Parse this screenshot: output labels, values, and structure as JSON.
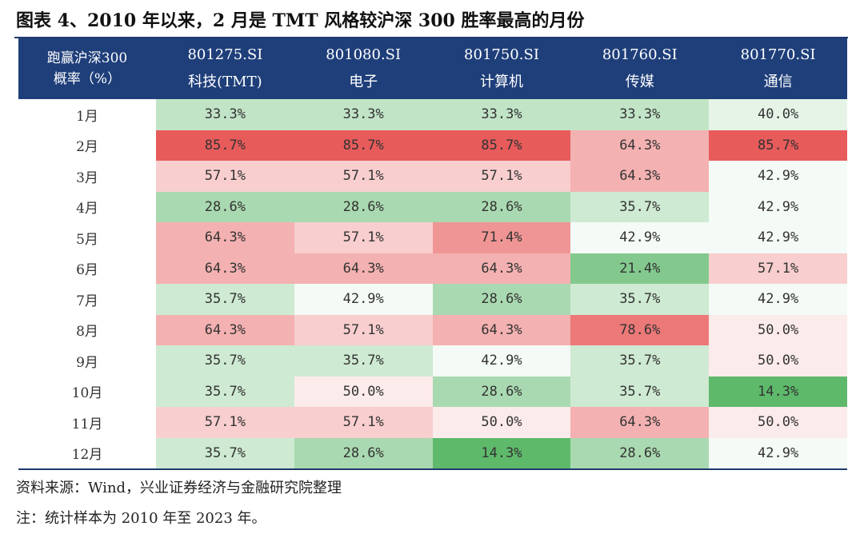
{
  "title": "图表 4、2010 年以来，2 月是 TMT 风格较沪深 300 胜率最高的月份",
  "corner_header": [
    "跑赢沪深300",
    "概率（%）"
  ],
  "source": "资料来源：Wind，兴业证券经济与金融研究院整理",
  "note": "注：统计样本为 2010 年至 2023 年。",
  "colors": {
    "header_bg": "#1f3f7a",
    "high": "#e85a5a",
    "low": "#5cb86a",
    "mid": "#ffffff"
  },
  "chart_data": {
    "type": "table",
    "columns": [
      {
        "code": "801275.SI",
        "name": "科技(TMT)"
      },
      {
        "code": "801080.SI",
        "name": "电子"
      },
      {
        "code": "801750.SI",
        "name": "计算机"
      },
      {
        "code": "801760.SI",
        "name": "传媒"
      },
      {
        "code": "801770.SI",
        "name": "通信"
      }
    ],
    "rows": [
      {
        "month": "1月",
        "values": [
          "33.3%",
          "33.3%",
          "33.3%",
          "33.3%",
          "40.0%"
        ]
      },
      {
        "month": "2月",
        "values": [
          "85.7%",
          "85.7%",
          "85.7%",
          "64.3%",
          "85.7%"
        ]
      },
      {
        "month": "3月",
        "values": [
          "57.1%",
          "57.1%",
          "57.1%",
          "64.3%",
          "42.9%"
        ]
      },
      {
        "month": "4月",
        "values": [
          "28.6%",
          "28.6%",
          "28.6%",
          "35.7%",
          "42.9%"
        ]
      },
      {
        "month": "5月",
        "values": [
          "64.3%",
          "57.1%",
          "71.4%",
          "42.9%",
          "42.9%"
        ]
      },
      {
        "month": "6月",
        "values": [
          "64.3%",
          "64.3%",
          "64.3%",
          "21.4%",
          "57.1%"
        ]
      },
      {
        "month": "7月",
        "values": [
          "35.7%",
          "42.9%",
          "28.6%",
          "35.7%",
          "42.9%"
        ]
      },
      {
        "month": "8月",
        "values": [
          "64.3%",
          "57.1%",
          "64.3%",
          "78.6%",
          "50.0%"
        ]
      },
      {
        "month": "9月",
        "values": [
          "35.7%",
          "35.7%",
          "42.9%",
          "35.7%",
          "50.0%"
        ]
      },
      {
        "month": "10月",
        "values": [
          "35.7%",
          "50.0%",
          "28.6%",
          "35.7%",
          "14.3%"
        ]
      },
      {
        "month": "11月",
        "values": [
          "57.1%",
          "57.1%",
          "50.0%",
          "64.3%",
          "50.0%"
        ]
      },
      {
        "month": "12月",
        "values": [
          "35.7%",
          "28.6%",
          "14.3%",
          "28.6%",
          "42.9%"
        ]
      }
    ]
  }
}
